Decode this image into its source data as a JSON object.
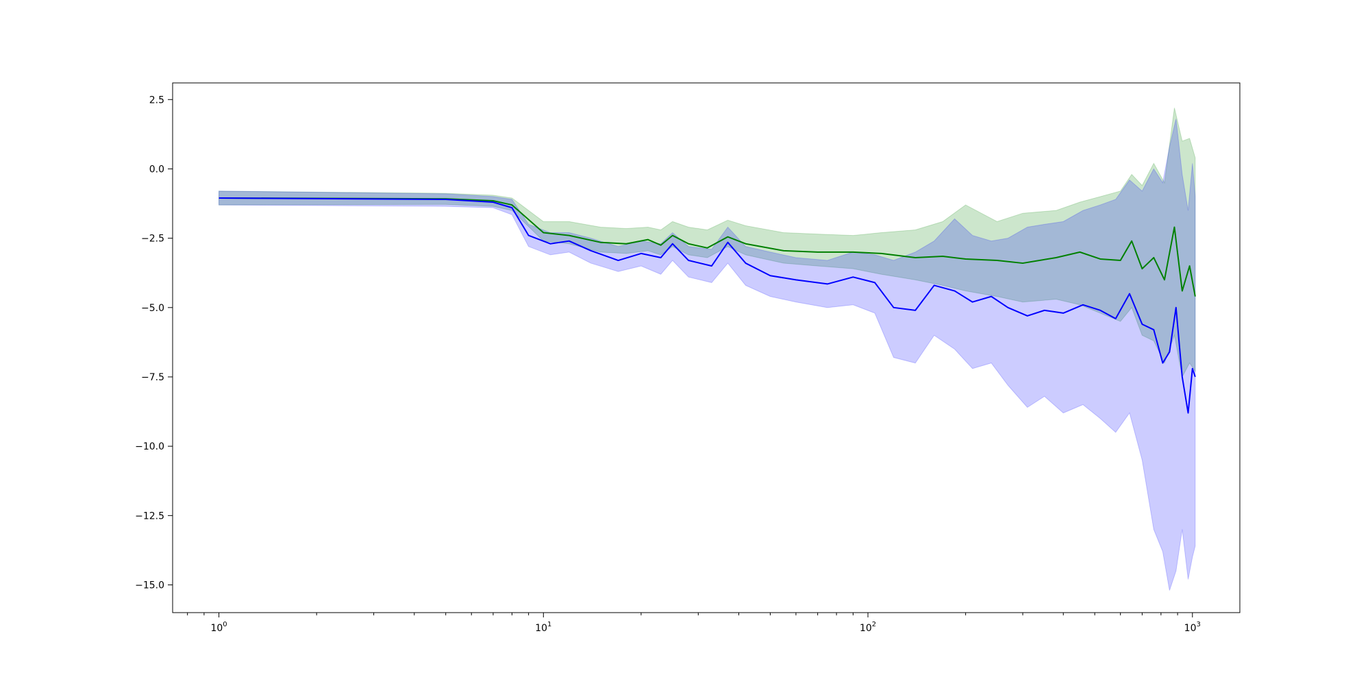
{
  "chart_data": {
    "type": "line",
    "title": "",
    "xlabel": "",
    "ylabel": "",
    "xscale": "log",
    "xlim": [
      0.72,
      1400
    ],
    "ylim": [
      -16.0,
      3.1
    ],
    "grid": false,
    "legend": "none",
    "x_ticks": [
      {
        "value": 1,
        "label": "10^0"
      },
      {
        "value": 10,
        "label": "10^1"
      },
      {
        "value": 100,
        "label": "10^2"
      },
      {
        "value": 1000,
        "label": "10^3"
      }
    ],
    "y_ticks": [
      {
        "value": 2.5,
        "label": "2.5"
      },
      {
        "value": 0.0,
        "label": "0.0"
      },
      {
        "value": -2.5,
        "label": "−2.5"
      },
      {
        "value": -5.0,
        "label": "−5.0"
      },
      {
        "value": -7.5,
        "label": "−7.5"
      },
      {
        "value": -10.0,
        "label": "−10.0"
      },
      {
        "value": -12.5,
        "label": "−12.5"
      },
      {
        "value": -15.0,
        "label": "−15.0"
      }
    ],
    "series": [
      {
        "color": "#008000",
        "band_color": "#008000",
        "band_opacity": 0.2,
        "points": [
          {
            "x": 1,
            "y": -1.05,
            "lo": -1.3,
            "hi": -0.8
          },
          {
            "x": 5,
            "y": -1.08,
            "lo": -1.28,
            "hi": -0.88
          },
          {
            "x": 7,
            "y": -1.15,
            "lo": -1.35,
            "hi": -0.95
          },
          {
            "x": 8,
            "y": -1.3,
            "lo": -1.5,
            "hi": -1.05
          },
          {
            "x": 10,
            "y": -2.3,
            "lo": -2.6,
            "hi": -1.9
          },
          {
            "x": 12,
            "y": -2.4,
            "lo": -2.7,
            "hi": -1.9
          },
          {
            "x": 15,
            "y": -2.65,
            "lo": -3.0,
            "hi": -2.1
          },
          {
            "x": 18,
            "y": -2.7,
            "lo": -3.05,
            "hi": -2.15
          },
          {
            "x": 21,
            "y": -2.55,
            "lo": -2.95,
            "hi": -2.1
          },
          {
            "x": 23,
            "y": -2.75,
            "lo": -3.1,
            "hi": -2.2
          },
          {
            "x": 25,
            "y": -2.4,
            "lo": -2.8,
            "hi": -1.9
          },
          {
            "x": 28,
            "y": -2.7,
            "lo": -3.1,
            "hi": -2.1
          },
          {
            "x": 32,
            "y": -2.85,
            "lo": -3.2,
            "hi": -2.2
          },
          {
            "x": 37,
            "y": -2.45,
            "lo": -2.8,
            "hi": -1.85
          },
          {
            "x": 42,
            "y": -2.7,
            "lo": -3.1,
            "hi": -2.05
          },
          {
            "x": 55,
            "y": -2.95,
            "lo": -3.4,
            "hi": -2.3
          },
          {
            "x": 70,
            "y": -3.0,
            "lo": -3.5,
            "hi": -2.35
          },
          {
            "x": 90,
            "y": -3.0,
            "lo": -3.6,
            "hi": -2.4
          },
          {
            "x": 110,
            "y": -3.05,
            "lo": -3.8,
            "hi": -2.3
          },
          {
            "x": 140,
            "y": -3.2,
            "lo": -4.0,
            "hi": -2.2
          },
          {
            "x": 170,
            "y": -3.15,
            "lo": -4.2,
            "hi": -1.9
          },
          {
            "x": 200,
            "y": -3.25,
            "lo": -4.4,
            "hi": -1.3
          },
          {
            "x": 250,
            "y": -3.3,
            "lo": -4.6,
            "hi": -1.9
          },
          {
            "x": 300,
            "y": -3.4,
            "lo": -4.8,
            "hi": -1.6
          },
          {
            "x": 380,
            "y": -3.2,
            "lo": -4.7,
            "hi": -1.5
          },
          {
            "x": 450,
            "y": -3.0,
            "lo": -4.9,
            "hi": -1.2
          },
          {
            "x": 520,
            "y": -3.25,
            "lo": -5.2,
            "hi": -1.0
          },
          {
            "x": 600,
            "y": -3.3,
            "lo": -5.5,
            "hi": -0.8
          },
          {
            "x": 650,
            "y": -2.6,
            "lo": -5.0,
            "hi": -0.2
          },
          {
            "x": 700,
            "y": -3.6,
            "lo": -6.0,
            "hi": -0.6
          },
          {
            "x": 760,
            "y": -3.2,
            "lo": -6.2,
            "hi": 0.2
          },
          {
            "x": 820,
            "y": -4.0,
            "lo": -7.0,
            "hi": -0.5
          },
          {
            "x": 880,
            "y": -2.1,
            "lo": -6.0,
            "hi": 2.2
          },
          {
            "x": 930,
            "y": -4.4,
            "lo": -7.5,
            "hi": 1.0
          },
          {
            "x": 980,
            "y": -3.5,
            "lo": -7.0,
            "hi": 1.1
          },
          {
            "x": 1020,
            "y": -4.6,
            "lo": -7.3,
            "hi": 0.4
          }
        ]
      },
      {
        "color": "#0000ff",
        "band_color": "#0000ff",
        "band_opacity": 0.2,
        "points": [
          {
            "x": 1,
            "y": -1.05,
            "lo": -1.3,
            "hi": -0.8
          },
          {
            "x": 5,
            "y": -1.1,
            "lo": -1.35,
            "hi": -0.9
          },
          {
            "x": 7,
            "y": -1.2,
            "lo": -1.4,
            "hi": -1.0
          },
          {
            "x": 8,
            "y": -1.4,
            "lo": -1.65,
            "hi": -1.1
          },
          {
            "x": 9,
            "y": -2.4,
            "lo": -2.8,
            "hi": -2.0
          },
          {
            "x": 10.5,
            "y": -2.7,
            "lo": -3.1,
            "hi": -2.3
          },
          {
            "x": 12,
            "y": -2.6,
            "lo": -3.0,
            "hi": -2.3
          },
          {
            "x": 14,
            "y": -2.95,
            "lo": -3.4,
            "hi": -2.5
          },
          {
            "x": 17,
            "y": -3.3,
            "lo": -3.7,
            "hi": -2.8
          },
          {
            "x": 20,
            "y": -3.05,
            "lo": -3.5,
            "hi": -2.6
          },
          {
            "x": 23,
            "y": -3.2,
            "lo": -3.8,
            "hi": -2.7
          },
          {
            "x": 25,
            "y": -2.7,
            "lo": -3.3,
            "hi": -2.3
          },
          {
            "x": 28,
            "y": -3.3,
            "lo": -3.9,
            "hi": -2.8
          },
          {
            "x": 33,
            "y": -3.5,
            "lo": -4.1,
            "hi": -2.9
          },
          {
            "x": 37,
            "y": -2.65,
            "lo": -3.4,
            "hi": -2.1
          },
          {
            "x": 42,
            "y": -3.4,
            "lo": -4.2,
            "hi": -2.8
          },
          {
            "x": 50,
            "y": -3.85,
            "lo": -4.6,
            "hi": -3.0
          },
          {
            "x": 60,
            "y": -4.0,
            "lo": -4.8,
            "hi": -3.2
          },
          {
            "x": 75,
            "y": -4.15,
            "lo": -5.0,
            "hi": -3.3
          },
          {
            "x": 90,
            "y": -3.9,
            "lo": -4.9,
            "hi": -3.0
          },
          {
            "x": 105,
            "y": -4.1,
            "lo": -5.2,
            "hi": -3.1
          },
          {
            "x": 120,
            "y": -5.0,
            "lo": -6.8,
            "hi": -3.3
          },
          {
            "x": 140,
            "y": -5.1,
            "lo": -7.0,
            "hi": -3.0
          },
          {
            "x": 160,
            "y": -4.2,
            "lo": -6.0,
            "hi": -2.6
          },
          {
            "x": 185,
            "y": -4.4,
            "lo": -6.5,
            "hi": -1.8
          },
          {
            "x": 210,
            "y": -4.8,
            "lo": -7.2,
            "hi": -2.4
          },
          {
            "x": 240,
            "y": -4.6,
            "lo": -7.0,
            "hi": -2.6
          },
          {
            "x": 270,
            "y": -5.0,
            "lo": -7.8,
            "hi": -2.5
          },
          {
            "x": 310,
            "y": -5.3,
            "lo": -8.6,
            "hi": -2.1
          },
          {
            "x": 350,
            "y": -5.1,
            "lo": -8.2,
            "hi": -2.0
          },
          {
            "x": 400,
            "y": -5.2,
            "lo": -8.8,
            "hi": -1.9
          },
          {
            "x": 460,
            "y": -4.9,
            "lo": -8.5,
            "hi": -1.5
          },
          {
            "x": 520,
            "y": -5.1,
            "lo": -9.0,
            "hi": -1.3
          },
          {
            "x": 580,
            "y": -5.4,
            "lo": -9.5,
            "hi": -1.1
          },
          {
            "x": 640,
            "y": -4.5,
            "lo": -8.8,
            "hi": -0.4
          },
          {
            "x": 700,
            "y": -5.6,
            "lo": -10.5,
            "hi": -0.8
          },
          {
            "x": 760,
            "y": -5.8,
            "lo": -13.0,
            "hi": 0.0
          },
          {
            "x": 810,
            "y": -7.0,
            "lo": -13.8,
            "hi": -0.5
          },
          {
            "x": 850,
            "y": -6.6,
            "lo": -15.2,
            "hi": 0.8
          },
          {
            "x": 890,
            "y": -5.0,
            "lo": -14.5,
            "hi": 1.8
          },
          {
            "x": 930,
            "y": -7.5,
            "lo": -13.0,
            "hi": -0.2
          },
          {
            "x": 970,
            "y": -8.8,
            "lo": -14.8,
            "hi": -1.5
          },
          {
            "x": 1000,
            "y": -7.2,
            "lo": -14.0,
            "hi": 0.2
          },
          {
            "x": 1020,
            "y": -7.5,
            "lo": -13.6,
            "hi": -1.0
          }
        ]
      }
    ]
  }
}
